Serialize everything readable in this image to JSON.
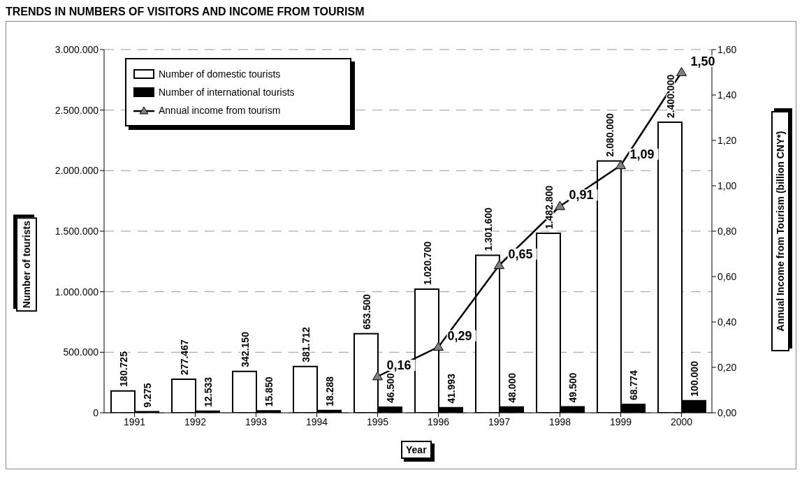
{
  "chart_data": {
    "type": "bar",
    "title": "TRENDS IN NUMBERS OF VISITORS AND INCOME FROM TOURISM",
    "xlabel": "Year",
    "ylabel": "Number of tourists",
    "y2label": "Annual Income from Tourism (billion CNY*)",
    "categories": [
      "1991",
      "1992",
      "1993",
      "1994",
      "1995",
      "1996",
      "1997",
      "1998",
      "1999",
      "2000"
    ],
    "series": [
      {
        "name": "Number of domestic tourists",
        "color": "#ffffff",
        "values": [
          180725,
          277467,
          342150,
          381712,
          653500,
          1020700,
          1301600,
          1482800,
          2080000,
          2400000
        ],
        "value_labels": [
          "180.725",
          "277.467",
          "342.150",
          "381.712",
          "653.500",
          "1.020.700",
          "1.301.600",
          "1.482.800",
          "2.080.000",
          "2.400.000"
        ]
      },
      {
        "name": "Number of international tourists",
        "color": "#000000",
        "values": [
          9275,
          12533,
          15850,
          18288,
          46500,
          41993,
          48000,
          49500,
          68774,
          100000
        ],
        "value_labels": [
          "9.275",
          "12.533",
          "15.850",
          "18.288",
          "46.500",
          "41.993",
          "48.000",
          "49.500",
          "68.774",
          "100.000"
        ]
      },
      {
        "name": "Annual income from tourism",
        "type": "line",
        "axis": "y2",
        "color": "#000000",
        "marker": "triangle",
        "values": [
          null,
          null,
          null,
          null,
          0.16,
          0.29,
          0.65,
          0.91,
          1.09,
          1.5
        ],
        "value_labels": [
          null,
          null,
          null,
          null,
          "0,16",
          "0,29",
          "0,65",
          "0,91",
          "1,09",
          "1,50"
        ]
      }
    ],
    "ylim": [
      0,
      3000000
    ],
    "yticks": [
      {
        "value": 0,
        "label": "0"
      },
      {
        "value": 500000,
        "label": "500.000"
      },
      {
        "value": 1000000,
        "label": "1.000.000"
      },
      {
        "value": 1500000,
        "label": "1.500.000"
      },
      {
        "value": 2000000,
        "label": "2.000.000"
      },
      {
        "value": 2500000,
        "label": "2.500.000"
      },
      {
        "value": 3000000,
        "label": "3.000.000"
      }
    ],
    "y2lim": [
      0,
      1.6
    ],
    "y2ticks": [
      {
        "value": 0,
        "label": "0,00"
      },
      {
        "value": 0.2,
        "label": "0,20"
      },
      {
        "value": 0.4,
        "label": "0,40"
      },
      {
        "value": 0.6,
        "label": "0,60"
      },
      {
        "value": 0.8,
        "label": "0,80"
      },
      {
        "value": 1.0,
        "label": "1,00"
      },
      {
        "value": 1.2,
        "label": "1,20"
      },
      {
        "value": 1.4,
        "label": "1,40"
      },
      {
        "value": 1.6,
        "label": "1,60"
      }
    ],
    "grid": "y",
    "legend": "top left"
  }
}
